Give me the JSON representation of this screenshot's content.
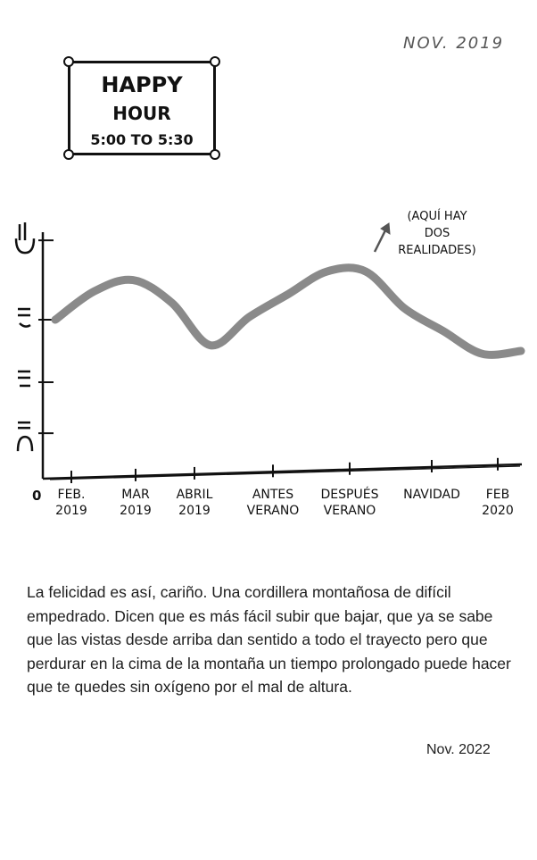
{
  "header": {
    "date": "NOV. 2019"
  },
  "sign": {
    "line1": "HAPPY",
    "line2": "HOUR",
    "line3": "5:00 TO 5:30"
  },
  "chart_data": {
    "type": "line",
    "categories": [
      "FEB. 2019",
      "MAR 2019",
      "ABRIL 2019",
      "ANTES VERANO",
      "DESPUÉS VERANO",
      "NAVIDAD",
      "FEB 2020"
    ],
    "x": [
      "FEB. 2019",
      "",
      "MAR 2019",
      "",
      "ABRIL 2019",
      "",
      "ANTES VERANO",
      "",
      "DESPUÉS VERANO",
      "",
      "NAVIDAD",
      "",
      "FEB 2020"
    ],
    "series": [
      {
        "values": [
          2.8,
          3.3,
          3.5,
          3.1,
          2.35,
          2.85,
          3.25,
          3.65,
          3.65,
          3.0,
          2.6,
          2.2,
          2.25
        ]
      }
    ],
    "ylim": [
      0,
      4.5
    ],
    "y_tick_faces": [
      "sad",
      "neutral",
      "slightly-happy",
      "happy"
    ],
    "y_origin_label": "0",
    "annotation": "(AQUÍ HAY DOS REALIDADES)",
    "line_color": "#8a8a8a",
    "grid": false
  },
  "caption": "La felicidad es así, cariño. Una cordillera montañosa de difícil empedrado. Dicen que es más fácil subir que bajar, que ya se sabe que las vistas desde arriba dan sentido a todo el trayecto pero que perdurar en la cima de la montaña un tiempo prolongado puede hacer que te quedes sin oxígeno por el mal de altura.",
  "footer": {
    "date": "Nov. 2022"
  }
}
